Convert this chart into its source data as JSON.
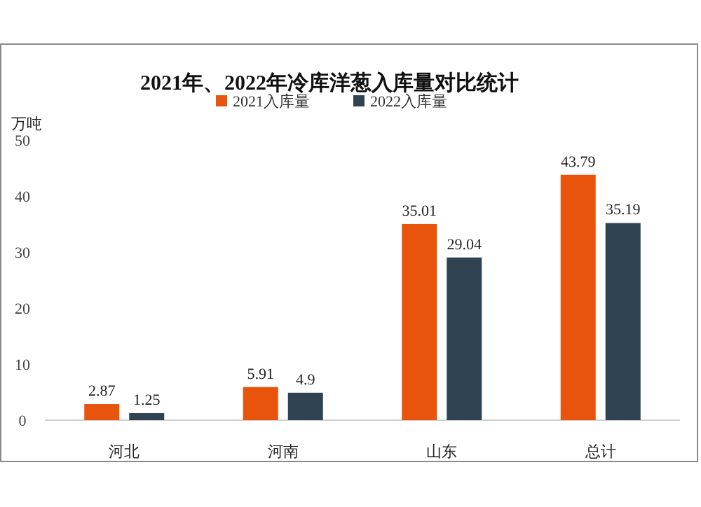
{
  "chart_data": {
    "type": "bar",
    "title": "2021年、2022年冷库洋葱入库量对比统计",
    "ylabel": "万吨",
    "categories": [
      "河北",
      "河南",
      "山东",
      "总计"
    ],
    "series": [
      {
        "name": "2021入库量",
        "color": "#e8540c",
        "values": [
          2.87,
          5.91,
          35.01,
          43.79
        ]
      },
      {
        "name": "2022入库量",
        "color": "#2f4352",
        "values": [
          1.25,
          4.9,
          29.04,
          35.19
        ]
      }
    ],
    "ylim": [
      0,
      50
    ],
    "yticks": [
      0,
      10,
      20,
      30,
      40,
      50
    ],
    "data_labels": true,
    "legend": "top"
  }
}
